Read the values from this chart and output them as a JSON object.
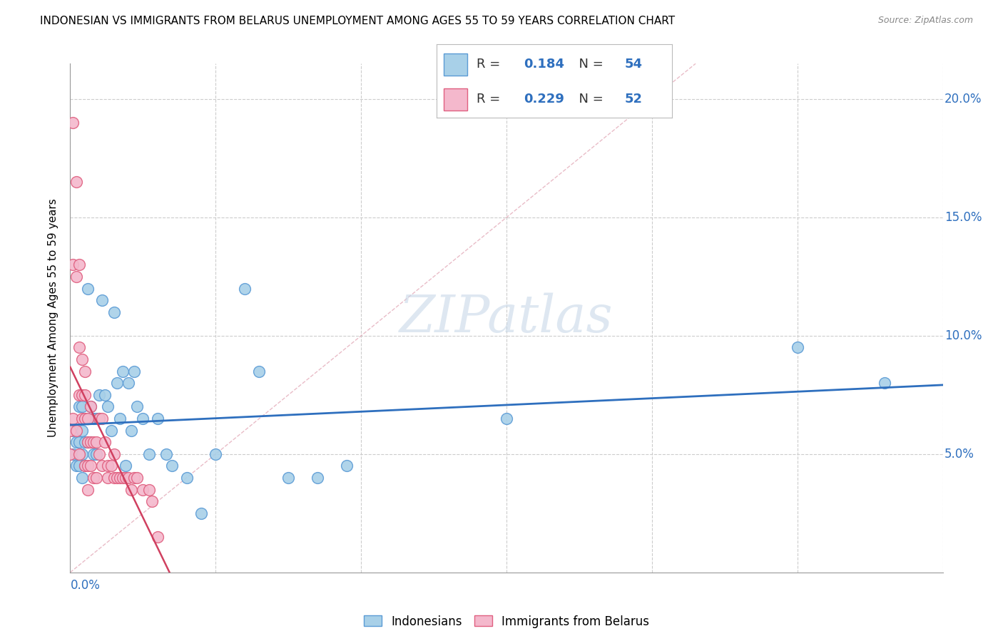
{
  "title": "INDONESIAN VS IMMIGRANTS FROM BELARUS UNEMPLOYMENT AMONG AGES 55 TO 59 YEARS CORRELATION CHART",
  "source": "Source: ZipAtlas.com",
  "ylabel": "Unemployment Among Ages 55 to 59 years",
  "xlim": [
    0.0,
    0.3
  ],
  "ylim": [
    0.0,
    0.215
  ],
  "yticks": [
    0.05,
    0.1,
    0.15,
    0.2
  ],
  "ytick_labels": [
    "5.0%",
    "10.0%",
    "15.0%",
    "20.0%"
  ],
  "r_indonesian": 0.184,
  "n_indonesian": 54,
  "r_belarus": 0.229,
  "n_belarus": 52,
  "color_indonesian_fill": "#a8d0e8",
  "color_indonesian_edge": "#5b9bd5",
  "color_belarus_fill": "#f4b8cc",
  "color_belarus_edge": "#e06080",
  "color_line_indonesian": "#2e6fbe",
  "color_line_belarus": "#d04060",
  "color_diagonal": "#e0a0b0",
  "watermark": "ZIPatlas",
  "indonesian_x": [
    0.001,
    0.001,
    0.002,
    0.002,
    0.003,
    0.003,
    0.003,
    0.004,
    0.004,
    0.004,
    0.004,
    0.005,
    0.005,
    0.005,
    0.006,
    0.006,
    0.006,
    0.007,
    0.007,
    0.008,
    0.008,
    0.009,
    0.009,
    0.01,
    0.01,
    0.011,
    0.012,
    0.013,
    0.014,
    0.015,
    0.016,
    0.017,
    0.018,
    0.019,
    0.02,
    0.021,
    0.022,
    0.023,
    0.025,
    0.027,
    0.03,
    0.033,
    0.035,
    0.04,
    0.045,
    0.05,
    0.06,
    0.065,
    0.075,
    0.085,
    0.095,
    0.15,
    0.25,
    0.28
  ],
  "indonesian_y": [
    0.06,
    0.05,
    0.055,
    0.045,
    0.07,
    0.055,
    0.045,
    0.07,
    0.06,
    0.05,
    0.04,
    0.065,
    0.055,
    0.045,
    0.12,
    0.065,
    0.055,
    0.07,
    0.055,
    0.065,
    0.05,
    0.065,
    0.05,
    0.075,
    0.065,
    0.115,
    0.075,
    0.07,
    0.06,
    0.11,
    0.08,
    0.065,
    0.085,
    0.045,
    0.08,
    0.06,
    0.085,
    0.07,
    0.065,
    0.05,
    0.065,
    0.05,
    0.045,
    0.04,
    0.025,
    0.05,
    0.12,
    0.085,
    0.04,
    0.04,
    0.045,
    0.065,
    0.095,
    0.08
  ],
  "belarus_x": [
    0.0,
    0.0,
    0.001,
    0.001,
    0.001,
    0.002,
    0.002,
    0.002,
    0.003,
    0.003,
    0.003,
    0.003,
    0.004,
    0.004,
    0.004,
    0.005,
    0.005,
    0.005,
    0.005,
    0.006,
    0.006,
    0.006,
    0.006,
    0.007,
    0.007,
    0.007,
    0.008,
    0.008,
    0.009,
    0.009,
    0.01,
    0.01,
    0.011,
    0.011,
    0.012,
    0.013,
    0.013,
    0.014,
    0.015,
    0.015,
    0.016,
    0.017,
    0.018,
    0.019,
    0.02,
    0.021,
    0.022,
    0.023,
    0.025,
    0.027,
    0.028,
    0.03
  ],
  "belarus_y": [
    0.06,
    0.05,
    0.19,
    0.13,
    0.065,
    0.165,
    0.125,
    0.06,
    0.13,
    0.095,
    0.075,
    0.05,
    0.09,
    0.075,
    0.065,
    0.085,
    0.075,
    0.065,
    0.045,
    0.065,
    0.055,
    0.045,
    0.035,
    0.07,
    0.055,
    0.045,
    0.055,
    0.04,
    0.055,
    0.04,
    0.065,
    0.05,
    0.065,
    0.045,
    0.055,
    0.045,
    0.04,
    0.045,
    0.05,
    0.04,
    0.04,
    0.04,
    0.04,
    0.04,
    0.04,
    0.035,
    0.04,
    0.04,
    0.035,
    0.035,
    0.03,
    0.015
  ]
}
